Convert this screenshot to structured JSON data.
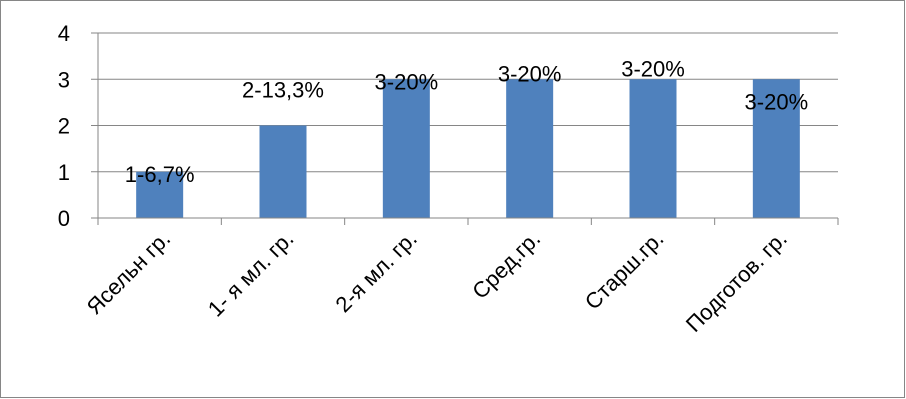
{
  "chart_data": {
    "type": "bar",
    "title": "",
    "xlabel": "",
    "ylabel": "",
    "categories": [
      "Ясельн гр.",
      "1- я мл. гр.",
      "2-я мл. гр.",
      "Сред.гр.",
      "Старш.гр.",
      "Подготов. гр."
    ],
    "values": [
      1,
      2,
      3,
      3,
      3,
      3
    ],
    "data_labels": [
      "1-6,7%",
      "2-13,3%",
      "3-20%",
      "3-20%",
      "3-20%",
      "3-20%"
    ],
    "ylim": [
      0,
      4
    ],
    "yticks": [
      0,
      1,
      2,
      3,
      4
    ],
    "ytick_labels": [
      "0",
      "1",
      "2",
      "3",
      "4"
    ],
    "grid": true,
    "legend": "none",
    "bar_color": "#4F81BD",
    "grid_color": "#868686",
    "axis_color": "#868686",
    "border_color": "#868686"
  }
}
